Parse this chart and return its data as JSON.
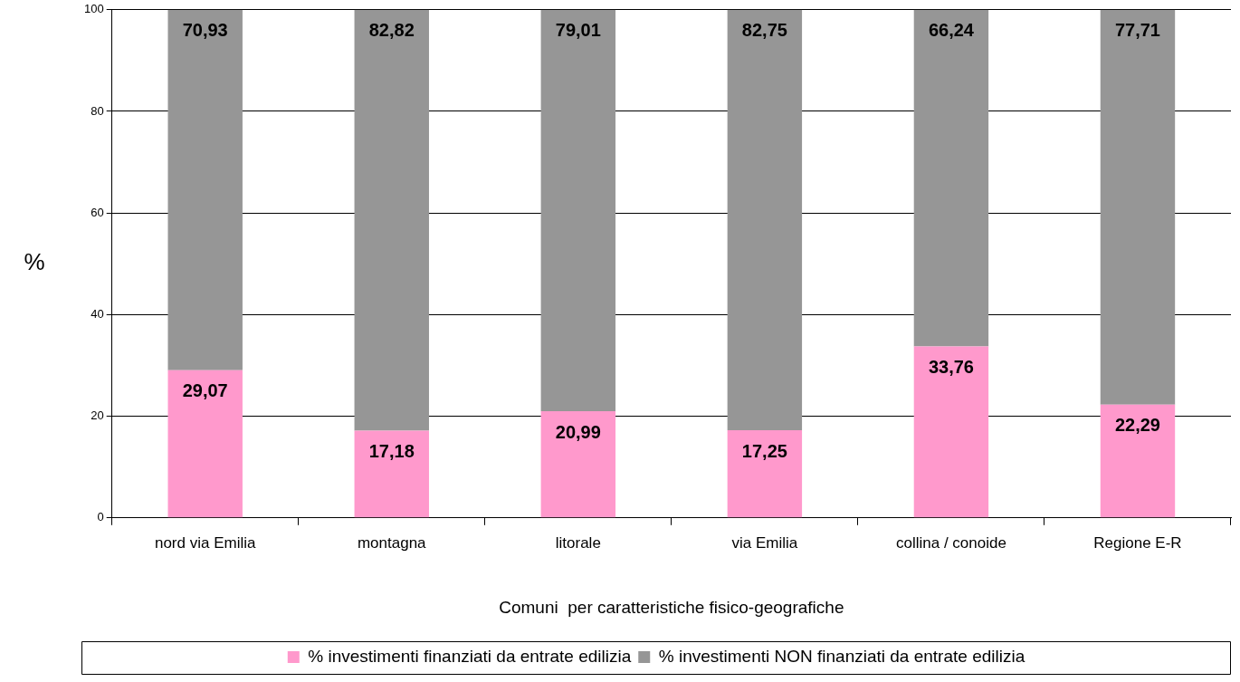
{
  "chart_data": {
    "type": "bar",
    "stacked": true,
    "xlabel": "Comuni  per caratteristiche fisico-geografiche",
    "ylabel": "%",
    "categories": [
      "nord via Emilia",
      "montagna",
      "litorale",
      "via Emilia",
      "collina / conoide",
      "Regione E-R"
    ],
    "series": [
      {
        "name": "% investimenti finanziati da entrate edilizia",
        "color": "#ff99cc",
        "values": [
          29.07,
          17.18,
          20.99,
          17.25,
          33.76,
          22.29
        ],
        "value_labels": [
          "29,07",
          "17,18",
          "20,99",
          "17,25",
          "33,76",
          "22,29"
        ]
      },
      {
        "name": "% investimenti NON finanziati da entrate edilizia",
        "color": "#969696",
        "values": [
          70.93,
          82.82,
          79.01,
          82.75,
          66.24,
          77.71
        ],
        "value_labels": [
          "70,93",
          "82,82",
          "79,01",
          "82,75",
          "66,24",
          "77,71"
        ]
      }
    ],
    "ylim": [
      0,
      100
    ],
    "yticks": [
      0,
      20,
      40,
      60,
      80,
      100
    ],
    "grid": "y",
    "legend": "bottom"
  }
}
